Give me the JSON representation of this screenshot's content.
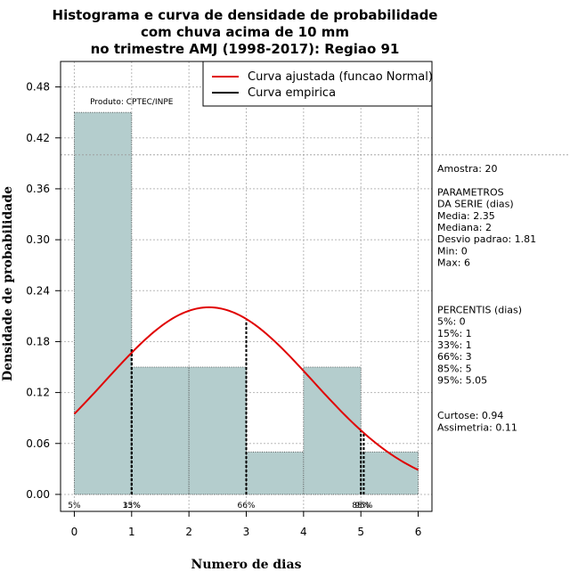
{
  "chart_data": {
    "type": "bar",
    "title_lines": [
      "Histograma e curva de densidade de probabilidade",
      "com chuva acima de 10 mm",
      "no trimestre AMJ (1998-2017): Regiao 91"
    ],
    "xlabel": "Numero de dias",
    "ylabel": "Densidade de probabilidade",
    "xlim": [
      -0.24,
      6.24
    ],
    "ylim": [
      -0.02,
      0.51
    ],
    "x_ticks": [
      "0",
      "1",
      "2",
      "3",
      "4",
      "5",
      "6"
    ],
    "y_ticks": [
      "0.00",
      "0.06",
      "0.12",
      "0.18",
      "0.24",
      "0.30",
      "0.36",
      "0.42",
      "0.48"
    ],
    "bins": [
      [
        0,
        1
      ],
      [
        1,
        2
      ],
      [
        2,
        3
      ],
      [
        3,
        4
      ],
      [
        4,
        5
      ],
      [
        5,
        6
      ]
    ],
    "values": [
      0.45,
      0.15,
      0.15,
      0.05,
      0.15,
      0.05
    ],
    "bar_fill": "#b4cdcd",
    "fitted_curve": {
      "distribution": "Normal",
      "mean": 2.35,
      "sd": 1.81,
      "color": "#e00000"
    },
    "reference_line_y": 0.4,
    "percentile_markers": [
      {
        "label": "5%",
        "x": 0,
        "y": 0
      },
      {
        "label": "15%",
        "x": 1,
        "y": 0.173
      },
      {
        "label": "33%",
        "x": 1,
        "y": 0.173
      },
      {
        "label": "66%",
        "x": 3,
        "y": 0.205
      },
      {
        "label": "85%",
        "x": 5,
        "y": 0.075
      },
      {
        "label": "95%",
        "x": 5.05,
        "y": 0.072
      }
    ],
    "legend": [
      {
        "label": "Curva ajustada (funcao Normal)",
        "color": "#e00000"
      },
      {
        "label": "Curva empirica",
        "color": "#000000"
      }
    ],
    "legend_position": "top-right",
    "product_label": "Produto: CPTEC/INPE",
    "side_text": [
      "Amostra: 20",
      "",
      " PARAMETROS",
      "DA SERIE (dias)",
      "  Media: 2.35",
      "  Mediana: 2",
      "  Desvio padrao: 1.81",
      "  Min: 0",
      "  Max: 6",
      "",
      "",
      "",
      "PERCENTIS (dias)",
      "  5%: 0",
      "  15%: 1",
      "  33%: 1",
      "  66%: 3",
      "  85%: 5",
      "  95%: 5.05",
      "",
      "",
      "    Curtose: 0.94",
      "Assimetria: 0.11"
    ]
  }
}
